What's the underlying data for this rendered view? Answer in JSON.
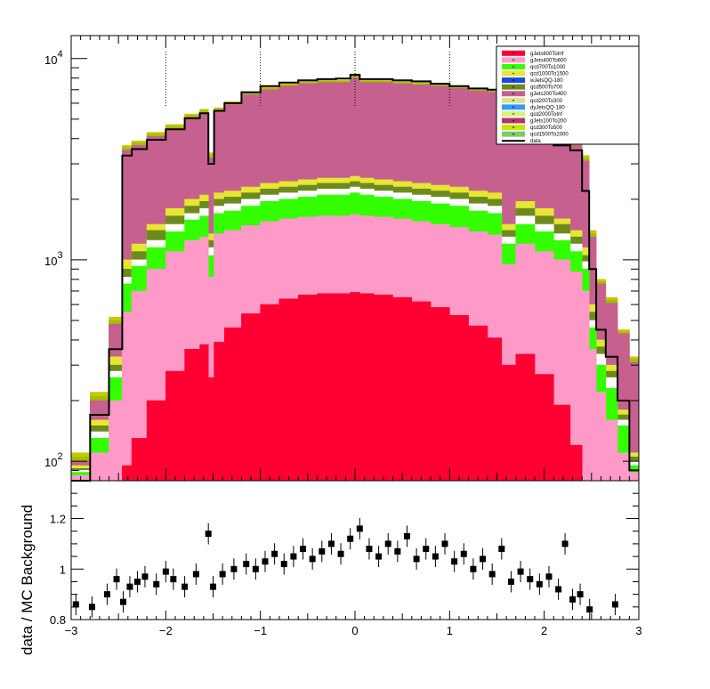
{
  "chart_data": [
    {
      "type": "area",
      "ylog": true,
      "xlim": [
        -3,
        3
      ],
      "ylim": [
        80,
        13000
      ],
      "x_ticks": [
        {
          "value": -3,
          "label": "−3"
        },
        {
          "value": -2,
          "label": "−2"
        },
        {
          "value": -1,
          "label": "−1"
        },
        {
          "value": 0,
          "label": "0"
        },
        {
          "value": 1,
          "label": "1"
        },
        {
          "value": 2,
          "label": "2"
        },
        {
          "value": 3,
          "label": "3"
        }
      ],
      "y_tick_labels": [
        {
          "value": 100,
          "base": "10",
          "exp": "2"
        },
        {
          "value": 1000,
          "base": "10",
          "exp": "3"
        },
        {
          "value": 10000,
          "base": "10",
          "exp": "4"
        }
      ],
      "vertical_lines": [
        -2,
        -1,
        0,
        1
      ],
      "x": [
        -2.9,
        -2.7,
        -2.5,
        -2.42,
        -2.3,
        -2.1,
        -1.9,
        -1.7,
        -1.58,
        -1.52,
        -1.46,
        -1.3,
        -1.1,
        -0.9,
        -0.7,
        -0.5,
        -0.3,
        -0.1,
        0.0,
        0.1,
        0.3,
        0.5,
        0.7,
        0.9,
        1.1,
        1.3,
        1.5,
        1.6,
        1.8,
        2.0,
        2.2,
        2.35,
        2.45,
        2.5,
        2.6,
        2.7,
        2.85,
        2.95
      ],
      "series": [
        {
          "name": "qcd1500To2000",
          "color": "#c8c800",
          "stack_top": [
            110,
            220,
            520,
            3700,
            3900,
            4300,
            4700,
            5300,
            5600,
            3400,
            5700,
            6100,
            6800,
            7200,
            7500,
            7700,
            7800,
            7800,
            8400,
            7800,
            7800,
            7700,
            7600,
            7500,
            7300,
            7100,
            7000,
            4500,
            4400,
            4250,
            4100,
            3900,
            3300,
            1400,
            800,
            650,
            450,
            330
          ]
        },
        {
          "name": "qcd300To500",
          "color": "#a0c000",
          "stack_top": [
            105,
            210,
            500,
            3600,
            3800,
            4200,
            4600,
            5200,
            5500,
            3300,
            5600,
            6000,
            6700,
            7100,
            7400,
            7600,
            7700,
            7700,
            8200,
            7700,
            7700,
            7600,
            7500,
            7400,
            7200,
            7000,
            6900,
            4400,
            4300,
            4150,
            4000,
            3800,
            3200,
            1350,
            780,
            630,
            440,
            320
          ]
        },
        {
          "name": "gJets100To200",
          "color": "#c6608e",
          "stack_top": [
            100,
            200,
            480,
            3500,
            3700,
            4100,
            4500,
            5100,
            5400,
            3200,
            5500,
            5900,
            6600,
            7000,
            7300,
            7500,
            7600,
            7600,
            8000,
            7600,
            7600,
            7500,
            7400,
            7300,
            7100,
            6900,
            6800,
            4300,
            4200,
            4050,
            3900,
            3700,
            3100,
            1300,
            760,
            610,
            430,
            310
          ]
        },
        {
          "name": "qcd2000ToInf",
          "color": "#e6e633",
          "stack_top": [
            95,
            160,
            330,
            1000,
            1200,
            1500,
            1800,
            2000,
            2100,
            1350,
            2150,
            2200,
            2300,
            2400,
            2450,
            2500,
            2550,
            2550,
            2600,
            2550,
            2500,
            2450,
            2400,
            2350,
            2300,
            2200,
            2150,
            1500,
            1950,
            1800,
            1600,
            1400,
            1150,
            600,
            400,
            300,
            180,
            110
          ]
        },
        {
          "name": "qcd500To700",
          "color": "#6d8a1e",
          "stack_top": [
            92,
            150,
            300,
            900,
            1100,
            1400,
            1650,
            1850,
            1950,
            1250,
            2000,
            2050,
            2150,
            2250,
            2300,
            2350,
            2400,
            2400,
            2450,
            2400,
            2350,
            2300,
            2250,
            2200,
            2150,
            2050,
            2000,
            1400,
            1800,
            1650,
            1500,
            1300,
            1050,
            550,
            370,
            280,
            170,
            105
          ]
        },
        {
          "name": "qcd200To300",
          "color": "#ffffff",
          "stack_top": [
            90,
            140,
            280,
            820,
            1000,
            1250,
            1500,
            1700,
            1800,
            1150,
            1850,
            1900,
            2000,
            2100,
            2150,
            2200,
            2250,
            2250,
            2300,
            2250,
            2200,
            2150,
            2100,
            2050,
            2000,
            1900,
            1850,
            1300,
            1650,
            1500,
            1350,
            1200,
            980,
            500,
            340,
            260,
            160,
            100
          ]
        },
        {
          "name": "qcd700To1000",
          "color": "#33ff00",
          "stack_top": [
            88,
            130,
            260,
            760,
            930,
            1150,
            1380,
            1580,
            1650,
            1050,
            1700,
            1750,
            1850,
            1950,
            2000,
            2050,
            2100,
            2100,
            2150,
            2100,
            2050,
            2000,
            1950,
            1900,
            1850,
            1750,
            1700,
            1200,
            1500,
            1380,
            1250,
            1100,
            900,
            460,
            300,
            230,
            150,
            95
          ]
        },
        {
          "name": "gJets400To600",
          "color": "#ff99c8",
          "stack_top": [
            85,
            110,
            200,
            550,
            700,
            900,
            1100,
            1250,
            1300,
            820,
            1350,
            1400,
            1480,
            1550,
            1600,
            1630,
            1650,
            1650,
            1680,
            1650,
            1630,
            1600,
            1550,
            1500,
            1450,
            1380,
            1330,
            950,
            1200,
            1100,
            1000,
            870,
            700,
            360,
            220,
            160,
            110,
            88
          ]
        },
        {
          "name": "gJets600ToInf",
          "color": "#ff0033",
          "stack_top": [
            0,
            0,
            0,
            95,
            130,
            200,
            280,
            360,
            380,
            260,
            390,
            460,
            540,
            600,
            640,
            670,
            680,
            680,
            690,
            680,
            670,
            650,
            620,
            580,
            530,
            470,
            410,
            300,
            340,
            270,
            190,
            120,
            0,
            0,
            0,
            0,
            0,
            0
          ]
        }
      ],
      "data_series": {
        "name": "data",
        "color": "#000000",
        "values": [
          80,
          170,
          360,
          3300,
          3550,
          3950,
          4450,
          5050,
          5350,
          3000,
          5500,
          6000,
          6800,
          7300,
          7600,
          7800,
          7900,
          7950,
          8300,
          7900,
          7900,
          7800,
          7700,
          7500,
          7300,
          7100,
          7000,
          3800,
          3900,
          3850,
          3700,
          3500,
          2200,
          900,
          450,
          330,
          200,
          90
        ]
      },
      "legend": {
        "position": "top-right",
        "entries": [
          {
            "label": "gJets600ToInf",
            "color": "#ff0033",
            "kind": "fill"
          },
          {
            "label": "gJets400To600",
            "color": "#ff99c8",
            "kind": "fill"
          },
          {
            "label": "qcd700To1000",
            "color": "#33ff00",
            "kind": "fill"
          },
          {
            "label": "qcd1000To1500",
            "color": "#e6e633",
            "kind": "fill"
          },
          {
            "label": "wJetsQQ-180",
            "color": "#1a47e6",
            "kind": "fill"
          },
          {
            "label": "qcd500To700",
            "color": "#6d8a1e",
            "kind": "fill"
          },
          {
            "label": "gJets200To400",
            "color": "#c6608e",
            "kind": "fill"
          },
          {
            "label": "qcd200To300",
            "color": "#d6e68c",
            "kind": "fill"
          },
          {
            "label": "dyJetsQQ-180",
            "color": "#3399ff",
            "kind": "fill"
          },
          {
            "label": "qcd2000ToInf",
            "color": "#d9f27a",
            "kind": "fill"
          },
          {
            "label": "gJets100To200",
            "color": "#b8326e",
            "kind": "fill"
          },
          {
            "label": "qcd300To500",
            "color": "#c8e600",
            "kind": "fill"
          },
          {
            "label": "qcd1500To2000",
            "color": "#7acc66",
            "kind": "fill"
          },
          {
            "label": "data",
            "color": "#000000",
            "kind": "line"
          }
        ]
      }
    },
    {
      "type": "scatter",
      "ylabel": "data / MC Background",
      "xlim": [
        -3,
        3
      ],
      "ylim": [
        0.8,
        1.35
      ],
      "y_ticks": [
        {
          "value": 0.8,
          "label": "0.8"
        },
        {
          "value": 1,
          "label": "1"
        },
        {
          "value": 1.2,
          "label": "1.2"
        }
      ],
      "x_ticks": [
        {
          "value": -3,
          "label": "−3"
        },
        {
          "value": -2,
          "label": "−2"
        },
        {
          "value": -1,
          "label": "−1"
        },
        {
          "value": 0,
          "label": "0"
        },
        {
          "value": 1,
          "label": "1"
        },
        {
          "value": 2,
          "label": "2"
        },
        {
          "value": 3,
          "label": "3"
        }
      ],
      "points": [
        {
          "x": -2.95,
          "y": 0.86
        },
        {
          "x": -2.78,
          "y": 0.85
        },
        {
          "x": -2.62,
          "y": 0.9
        },
        {
          "x": -2.52,
          "y": 0.96
        },
        {
          "x": -2.45,
          "y": 0.87
        },
        {
          "x": -2.38,
          "y": 0.93
        },
        {
          "x": -2.3,
          "y": 0.95
        },
        {
          "x": -2.22,
          "y": 0.97
        },
        {
          "x": -2.1,
          "y": 0.94
        },
        {
          "x": -2.0,
          "y": 0.99
        },
        {
          "x": -1.92,
          "y": 0.96
        },
        {
          "x": -1.8,
          "y": 0.93
        },
        {
          "x": -1.68,
          "y": 0.98
        },
        {
          "x": -1.55,
          "y": 1.14
        },
        {
          "x": -1.5,
          "y": 0.93
        },
        {
          "x": -1.4,
          "y": 0.98
        },
        {
          "x": -1.28,
          "y": 1.0
        },
        {
          "x": -1.15,
          "y": 1.02
        },
        {
          "x": -1.05,
          "y": 1.0
        },
        {
          "x": -0.95,
          "y": 1.03
        },
        {
          "x": -0.85,
          "y": 1.06
        },
        {
          "x": -0.75,
          "y": 1.02
        },
        {
          "x": -0.65,
          "y": 1.05
        },
        {
          "x": -0.55,
          "y": 1.08
        },
        {
          "x": -0.45,
          "y": 1.04
        },
        {
          "x": -0.35,
          "y": 1.07
        },
        {
          "x": -0.25,
          "y": 1.1
        },
        {
          "x": -0.15,
          "y": 1.06
        },
        {
          "x": -0.05,
          "y": 1.12
        },
        {
          "x": 0.05,
          "y": 1.16
        },
        {
          "x": 0.15,
          "y": 1.08
        },
        {
          "x": 0.25,
          "y": 1.05
        },
        {
          "x": 0.35,
          "y": 1.1
        },
        {
          "x": 0.45,
          "y": 1.07
        },
        {
          "x": 0.55,
          "y": 1.13
        },
        {
          "x": 0.65,
          "y": 1.04
        },
        {
          "x": 0.75,
          "y": 1.08
        },
        {
          "x": 0.85,
          "y": 1.05
        },
        {
          "x": 0.95,
          "y": 1.1
        },
        {
          "x": 1.05,
          "y": 1.03
        },
        {
          "x": 1.15,
          "y": 1.06
        },
        {
          "x": 1.25,
          "y": 1.0
        },
        {
          "x": 1.35,
          "y": 1.04
        },
        {
          "x": 1.45,
          "y": 0.98
        },
        {
          "x": 1.55,
          "y": 1.08
        },
        {
          "x": 1.65,
          "y": 0.95
        },
        {
          "x": 1.75,
          "y": 0.99
        },
        {
          "x": 1.85,
          "y": 0.96
        },
        {
          "x": 1.95,
          "y": 0.94
        },
        {
          "x": 2.05,
          "y": 0.97
        },
        {
          "x": 2.15,
          "y": 0.92
        },
        {
          "x": 2.22,
          "y": 1.1
        },
        {
          "x": 2.3,
          "y": 0.88
        },
        {
          "x": 2.38,
          "y": 0.9
        },
        {
          "x": 2.48,
          "y": 0.84
        },
        {
          "x": 2.75,
          "y": 0.86
        }
      ]
    }
  ]
}
